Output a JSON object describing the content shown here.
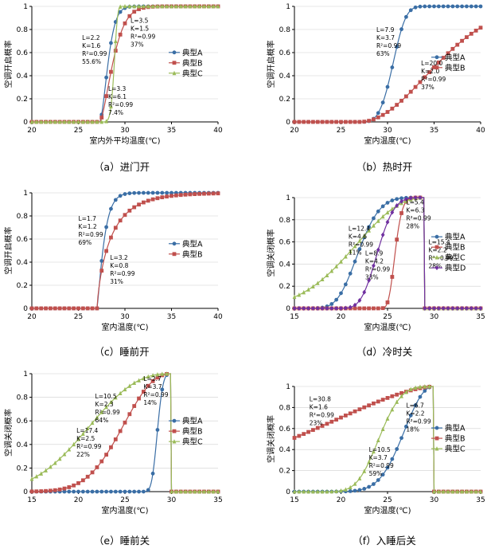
{
  "series_styles": {
    "典型A": {
      "color": "#3a6ea5",
      "marker": "circle"
    },
    "典型B": {
      "color": "#c0504d",
      "marker": "square"
    },
    "典型C": {
      "color": "#9bbb59",
      "marker": "triangle"
    },
    "典型D": {
      "color": "#7030a0",
      "marker": "diamond"
    }
  },
  "chart_data": [
    {
      "type": "line",
      "caption": "（a）进门开",
      "xlabel": "室内外平均温度(℃)",
      "ylabel": "空调开启概率",
      "xlim": [
        20,
        40
      ],
      "ylim": [
        0,
        1
      ],
      "xticks": [
        20,
        25,
        30,
        35,
        40
      ],
      "yticks": [
        0,
        0.2,
        0.4,
        0.6,
        0.8,
        1
      ],
      "ytick_labels": [
        "0",
        "0.2",
        "0.4",
        "0.6",
        "0.8",
        "1"
      ],
      "legend": [
        "典型A",
        "典型B",
        "典型C"
      ],
      "legend_position": "right",
      "series": [
        {
          "name": "典型A",
          "kind": "weibull_open",
          "params": {
            "x0": 27.3,
            "L": 2.2,
            "K": 1.6
          }
        },
        {
          "name": "典型B",
          "kind": "weibull_open",
          "params": {
            "x0": 27.3,
            "L": 3.5,
            "K": 1.5
          }
        },
        {
          "name": "典型C",
          "kind": "weibull_open",
          "params": {
            "x0": 27.3,
            "L": 3.3,
            "K": 6.1
          }
        }
      ],
      "annotations": [
        {
          "lines": [
            "L=2.2",
            "K=1.6",
            "R²=0.99",
            "55.6%"
          ],
          "pos": [
            0.27,
            0.29
          ]
        },
        {
          "lines": [
            "L=3.5",
            "K=1.5",
            "R²=0.99",
            "37%"
          ],
          "pos": [
            0.53,
            0.14
          ]
        },
        {
          "lines": [
            "L=3.3",
            "K=6.1",
            "R²=0.99",
            "7.4%"
          ],
          "pos": [
            0.41,
            0.73
          ]
        }
      ]
    },
    {
      "type": "line",
      "caption": "（b）热时开",
      "xlabel": "室内温度(℃)",
      "ylabel": "空调开启概率",
      "xlim": [
        20,
        40
      ],
      "ylim": [
        0,
        1
      ],
      "xticks": [
        20,
        25,
        30,
        35,
        40
      ],
      "yticks": [
        0,
        0.2,
        0.4,
        0.6,
        0.8,
        1
      ],
      "ytick_labels": [
        "0",
        "0.2",
        "0.4",
        "0.6",
        "0.8",
        "1"
      ],
      "legend": [
        "典型A",
        "典型B"
      ],
      "legend_position": "right",
      "series": [
        {
          "name": "典型A",
          "kind": "weibull_open",
          "params": {
            "x0": 27.0,
            "L": 7.9,
            "K": 3.7
          }
        },
        {
          "name": "典型B",
          "kind": "weibull_open",
          "params": {
            "x0": 27.0,
            "L": 20.0,
            "K": 2.0
          }
        }
      ],
      "annotations": [
        {
          "lines": [
            "L=7.9",
            "K=3.7",
            "R²=0.99",
            "63%"
          ],
          "pos": [
            0.44,
            0.22
          ]
        },
        {
          "lines": [
            "L=20.0",
            "K=2.0",
            "R²=0.99",
            "37%"
          ],
          "pos": [
            0.68,
            0.51
          ]
        }
      ]
    },
    {
      "type": "line",
      "caption": "（c）睡前开",
      "xlabel": "室内温度(℃)",
      "ylabel": "空调开启概率",
      "xlim": [
        20,
        40
      ],
      "ylim": [
        0,
        1
      ],
      "xticks": [
        20,
        25,
        30,
        35,
        40
      ],
      "yticks": [
        0,
        0.2,
        0.4,
        0.6,
        0.8,
        1
      ],
      "ytick_labels": [
        "0",
        "0.2",
        "0.4",
        "0.6",
        "0.8",
        "1"
      ],
      "legend": [
        "典型A",
        "典型B"
      ],
      "legend_position": "right",
      "series": [
        {
          "name": "典型A",
          "kind": "weibull_open",
          "params": {
            "x0": 27.0,
            "L": 1.7,
            "K": 1.2
          }
        },
        {
          "name": "典型B",
          "kind": "weibull_open",
          "params": {
            "x0": 27.0,
            "L": 3.2,
            "K": 0.8
          }
        }
      ],
      "annotations": [
        {
          "lines": [
            "L=1.7",
            "K=1.2",
            "R²=0.99",
            "69%"
          ],
          "pos": [
            0.25,
            0.24
          ]
        },
        {
          "lines": [
            "L=3.2",
            "K=0.8",
            "R²=0.99",
            "31%"
          ],
          "pos": [
            0.42,
            0.58
          ]
        }
      ]
    },
    {
      "type": "line",
      "caption": "（d）冷时关",
      "xlabel": "室内温度(℃)",
      "ylabel": "空调关闭概率",
      "xlim": [
        15,
        35
      ],
      "ylim": [
        0,
        1
      ],
      "xticks": [
        15,
        20,
        25,
        30,
        35
      ],
      "yticks": [
        0,
        0.2,
        0.4,
        0.6,
        0.8,
        1
      ],
      "ytick_labels": [
        "0",
        "0.2",
        "0.4",
        "0.6",
        "0.8",
        "1"
      ],
      "legend": [
        "典型A",
        "典型B",
        "典型C",
        "典型D"
      ],
      "legend_position": "right",
      "series": [
        {
          "name": "典型A",
          "kind": "weibull_close",
          "params": {
            "x0": 29.0,
            "L": 12.4,
            "K": 4.6
          }
        },
        {
          "name": "典型B",
          "kind": "weibull_close",
          "params": {
            "x0": 29.0,
            "L": 5.4,
            "K": 6.3
          }
        },
        {
          "name": "典型C",
          "kind": "weibull_close",
          "params": {
            "x0": 29.0,
            "L": 15.4,
            "K": 2.2
          }
        },
        {
          "name": "典型D",
          "kind": "weibull_close",
          "params": {
            "x0": 29.0,
            "L": 8.9,
            "K": 4.2
          }
        }
      ],
      "annotations": [
        {
          "lines": [
            "L=5.4",
            "K=6.3",
            "R²=0.99",
            "28%"
          ],
          "pos": [
            0.6,
            0.06
          ]
        },
        {
          "lines": [
            "L=12.4",
            "K=4.6",
            "R²=0.99",
            "11%"
          ],
          "pos": [
            0.29,
            0.3
          ]
        },
        {
          "lines": [
            "L=15.4",
            "K=2.2",
            "R²=0.99",
            "28%"
          ],
          "pos": [
            0.72,
            0.42
          ]
        },
        {
          "lines": [
            "L=8.9",
            "K=4.2",
            "R²=0.99",
            "33%"
          ],
          "pos": [
            0.38,
            0.52
          ]
        }
      ]
    },
    {
      "type": "line",
      "caption": "（e）睡前关",
      "xlabel": "室内温度(℃)",
      "ylabel": "空调关闭概率",
      "xlim": [
        15,
        35
      ],
      "ylim": [
        0,
        1
      ],
      "xticks": [
        15,
        20,
        25,
        30,
        35
      ],
      "yticks": [
        0,
        0.2,
        0.4,
        0.6,
        0.8,
        1
      ],
      "ytick_labels": [
        "0",
        "0.2",
        "0.4",
        "0.6",
        "0.8",
        "1"
      ],
      "legend": [
        "典型A",
        "典型B",
        "典型C"
      ],
      "legend_position": "right",
      "series": [
        {
          "name": "典型A",
          "kind": "weibull_close",
          "params": {
            "x0": 30.0,
            "L": 2.7,
            "K": 3.7
          }
        },
        {
          "name": "典型B",
          "kind": "weibull_close",
          "params": {
            "x0": 30.0,
            "L": 10.5,
            "K": 2.3
          }
        },
        {
          "name": "典型C",
          "kind": "weibull_close",
          "params": {
            "x0": 30.0,
            "L": 17.4,
            "K": 2.5
          }
        }
      ],
      "annotations": [
        {
          "lines": [
            "L=2.7",
            "K=3.7",
            "R²=0.99",
            "14%"
          ],
          "pos": [
            0.6,
            0.06
          ]
        },
        {
          "lines": [
            "L=10.5",
            "K=2.3",
            "R²=0.99",
            "64%"
          ],
          "pos": [
            0.34,
            0.21
          ]
        },
        {
          "lines": [
            "L=17.4",
            "K=2.5",
            "R²=0.99",
            "22%"
          ],
          "pos": [
            0.24,
            0.5
          ]
        }
      ]
    },
    {
      "type": "line",
      "caption": "（f）入睡后关",
      "xlabel": "室内温度(℃)",
      "ylabel": "空调关闭概率",
      "xlim": [
        15,
        35
      ],
      "ylim": [
        0,
        1
      ],
      "xticks": [
        15,
        20,
        25,
        30,
        35
      ],
      "yticks": [
        0,
        0.2,
        0.4,
        0.6,
        0.8,
        1
      ],
      "ytick_labels": [
        "0",
        "0.2",
        "0.4",
        "0.6",
        "0.8",
        "1"
      ],
      "legend": [
        "典型A",
        "典型B",
        "典型C"
      ],
      "legend_position": "right",
      "series": [
        {
          "name": "典型A",
          "kind": "weibull_close",
          "params": {
            "x0": 30.0,
            "L": 6.7,
            "K": 2.2
          }
        },
        {
          "name": "典型B",
          "kind": "weibull_close",
          "params": {
            "x0": 30.0,
            "L": 30.8,
            "K": 1.6
          }
        },
        {
          "name": "典型C",
          "kind": "weibull_close",
          "params": {
            "x0": 30.0,
            "L": 10.5,
            "K": 3.7
          }
        }
      ],
      "annotations": [
        {
          "lines": [
            "L=30.8",
            "K=1.6",
            "R²=0.99",
            "23%"
          ],
          "pos": [
            0.08,
            0.14
          ]
        },
        {
          "lines": [
            "L=6.7",
            "K=2.2",
            "R²=0.99",
            "18%"
          ],
          "pos": [
            0.6,
            0.2
          ]
        },
        {
          "lines": [
            "L=10.5",
            "K=3.7",
            "R²=0.99",
            "59%"
          ],
          "pos": [
            0.4,
            0.62
          ]
        }
      ]
    }
  ]
}
